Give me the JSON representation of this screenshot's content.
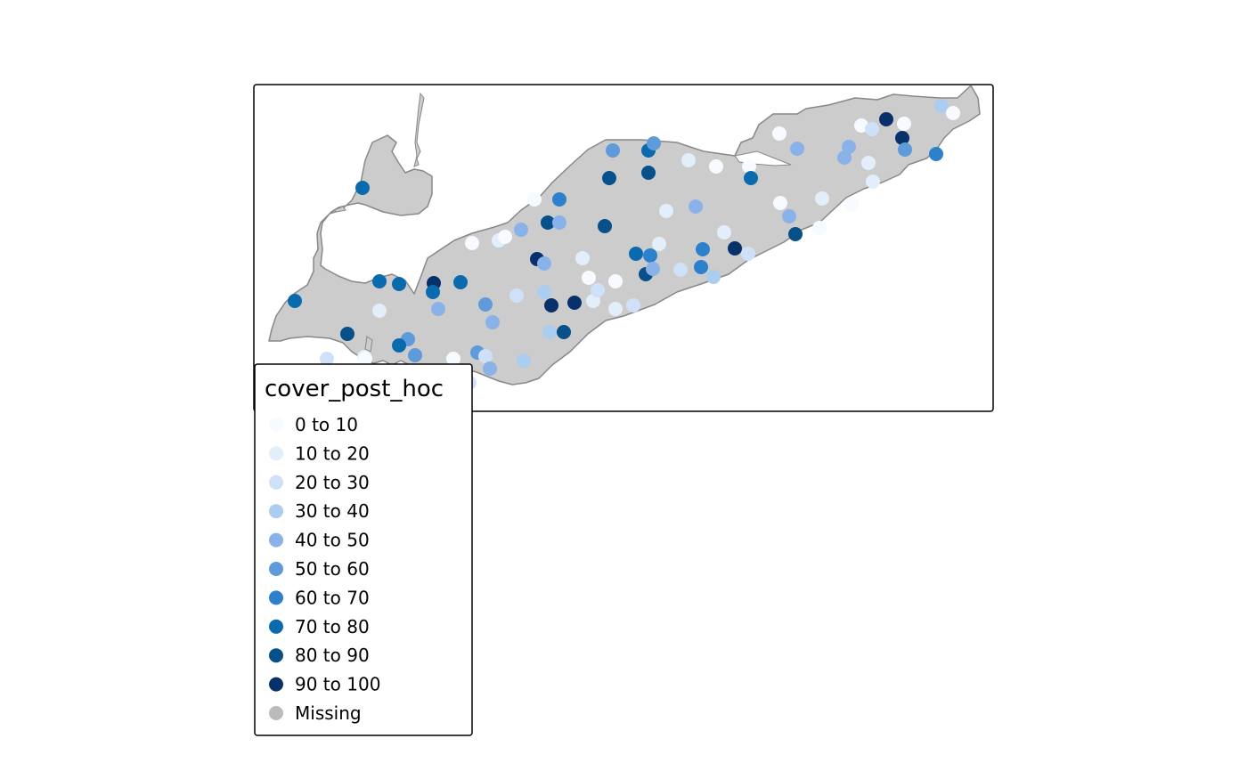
{
  "map": {
    "region": "lake-erie-basin",
    "land_color": "#cccccc",
    "outline_color": "#888888",
    "frame_color": "#000000"
  },
  "legend": {
    "title": "cover_post_hoc",
    "classes": [
      {
        "label": "0 to 10",
        "color": "#f7fbff"
      },
      {
        "label": "10 to 20",
        "color": "#e3eefb"
      },
      {
        "label": "20 to 30",
        "color": "#cfe1f8"
      },
      {
        "label": "30 to 40",
        "color": "#abcdf0"
      },
      {
        "label": "40 to 50",
        "color": "#89b2e8"
      },
      {
        "label": "50 to 60",
        "color": "#5f9bdb"
      },
      {
        "label": "60 to 70",
        "color": "#2d80cc"
      },
      {
        "label": "70 to 80",
        "color": "#0a6aae"
      },
      {
        "label": "80 to 90",
        "color": "#075089"
      },
      {
        "label": "90 to 100",
        "color": "#08306b"
      },
      {
        "label": "Missing",
        "color": "#bbbbbb"
      }
    ]
  }
}
